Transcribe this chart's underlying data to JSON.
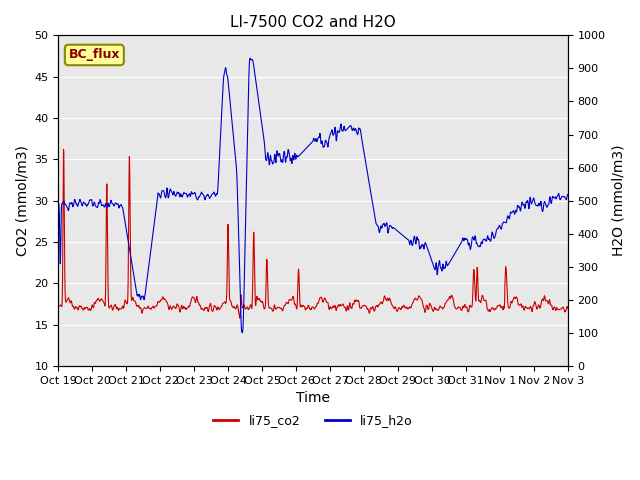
{
  "title": "LI-7500 CO2 and H2O",
  "xlabel": "Time",
  "ylabel_left": "CO2 (mmol/m3)",
  "ylabel_right": "H2O (mmol/m3)",
  "ylim_left": [
    10,
    50
  ],
  "ylim_right": [
    0,
    1000
  ],
  "yticks_left": [
    10,
    15,
    20,
    25,
    30,
    35,
    40,
    45,
    50
  ],
  "yticks_right": [
    0,
    100,
    200,
    300,
    400,
    500,
    600,
    700,
    800,
    900,
    1000
  ],
  "xtick_labels": [
    "Oct 19",
    "Oct 20",
    "Oct 21",
    "Oct 22",
    "Oct 23",
    "Oct 24",
    "Oct 25",
    "Oct 26",
    "Oct 27",
    "Oct 28",
    "Oct 29",
    "Oct 30",
    "Oct 31",
    "Nov 1",
    "Nov 2",
    "Nov 3"
  ],
  "bg_color": "#e8e8e8",
  "legend_label_co2": "li75_co2",
  "legend_label_h2o": "li75_h2o",
  "co2_color": "#cc0000",
  "h2o_color": "#0000cc",
  "annotation_text": "BC_flux",
  "annotation_bg": "#ffff99",
  "annotation_border": "#888800"
}
